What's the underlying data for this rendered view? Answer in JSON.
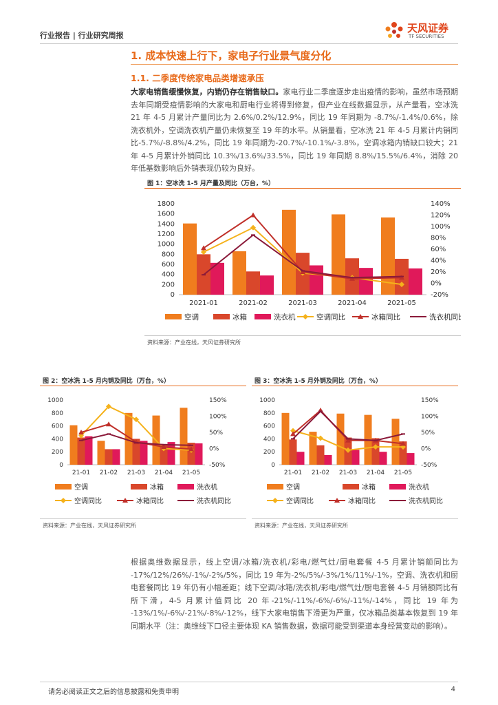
{
  "header": {
    "left": "行业报告 | 行业研究周报",
    "logo_cn": "天风证券",
    "logo_en": "TF SECURITIES"
  },
  "section": {
    "h1": "1. 成本快速上行下，家电子行业景气度分化",
    "h2": "1.1. 二季度传统家电品类增速承压"
  },
  "para1": {
    "bold": "大家电销售缓慢恢复，内销仍存在销售缺口。",
    "text": "家电行业二季度逐步走出疫情的影响，虽然市场预期去年同期受疫情影响的大家电和厨电行业将得到修复，但产业在线数据显示，从产量看，空冰洗 21 年 4-5 月累计产量同比为 2.6%/0.2%/12.9%，同比 19 年同期为 -8.7%/-1.4%/0.6%，除洗衣机外，空调洗衣机产量仍未恢复至 19 年的水平。从销量看，空冰洗 21 年 4-5 月累计内销同比-5.7%/-8.8%/4.2%，同比 19 年同期为-20.7%/-10.1%/-3.8%，空调冰箱内销缺口较大；21 年 4-5 月累计外销同比 10.3%/13.6%/33.5%，同比 19 年同期 8.8%/15.5%/6.4%，消除 20 年低基数影响后外销表现仍较为良好。"
  },
  "fig1": {
    "title": "图 1：空冰洗 1-5 月产量及同比（万台，%）",
    "source": "资料来源：产业在线，天风证券研究所"
  },
  "fig2": {
    "title": "图 2：空冰洗 1-5 月内销及同比（万台，%）",
    "source": "资料来源：产业在线，天风证券研究所"
  },
  "fig3": {
    "title": "图 3：空冰洗 1-5 月外销及同比（万台，%）",
    "source": "资料来源：产业在线，天风证券研究所"
  },
  "para2": "根据奥维数据显示，线上空调/冰箱/洗衣机/彩电/燃气灶/厨电套餐 4-5 月累计销额同比为 -17%/12%/26%/-1%/-2%/5%，同比 19 年为-2%/5%/-3%/1%/11%/-1%，空调、洗衣机和厨电套餐同比 19 年仍有小幅差距；线下空调/冰箱/洗衣机/彩电/燃气灶/厨电套餐 4-5 月销额同比有所下滑，4-5 月累计值同比 20 年-21%/-11%/-6%/-6%/-11%/-14%，同比 19 年为 -13%/1%/-6%/-21%/-8%/-12%，线下大家电销售下滑更为严重，仅冰箱品类基本恢复到 19 年同期水平（注：奥维线下口径主要体现 KA 销售数据，数据可能受到渠道本身经营变动的影响）。",
  "footer": {
    "left": "请务必阅读正文之后的信息披露和免责申明",
    "page": "4"
  },
  "chart_data": [
    {
      "id": "fig1",
      "type": "bar",
      "categories": [
        "2021-01",
        "2021-02",
        "2021-03",
        "2021-04",
        "2021-05"
      ],
      "series": [
        {
          "name": "空调",
          "kind": "bar",
          "color": "#f07d1e",
          "values": [
            1410,
            860,
            1680,
            1590,
            1530
          ]
        },
        {
          "name": "冰箱",
          "kind": "bar",
          "color": "#d9472b",
          "values": [
            800,
            460,
            830,
            720,
            710
          ]
        },
        {
          "name": "洗衣机",
          "kind": "bar",
          "color": "#e0195a",
          "values": [
            630,
            380,
            580,
            530,
            520
          ]
        },
        {
          "name": "空调同比",
          "kind": "line",
          "color": "#f5b21c",
          "marker": "diamond",
          "values": [
            55,
            98,
            18,
            10,
            -2
          ]
        },
        {
          "name": "冰箱同比",
          "kind": "line",
          "color": "#c0302a",
          "marker": "triangle",
          "values": [
            62,
            120,
            20,
            8,
            10
          ]
        },
        {
          "name": "洗衣机同比",
          "kind": "line",
          "color": "#8b1a3a",
          "marker": "dash",
          "values": [
            15,
            85,
            22,
            10,
            12
          ]
        }
      ],
      "ylim": [
        0,
        1800
      ],
      "yticks": [
        "0",
        "200",
        "400",
        "600",
        "800",
        "1000",
        "1200",
        "1400",
        "1600",
        "1800"
      ],
      "y2lim": [
        -20,
        140
      ],
      "y2ticks": [
        "-20%",
        "0%",
        "20%",
        "40%",
        "60%",
        "80%",
        "100%",
        "120%",
        "140%"
      ]
    },
    {
      "id": "fig2",
      "type": "bar",
      "categories": [
        "21-01",
        "21-02",
        "21-03",
        "21-04",
        "21-05"
      ],
      "series": [
        {
          "name": "空调",
          "kind": "bar",
          "color": "#f07d1e",
          "values": [
            610,
            370,
            800,
            760,
            880
          ]
        },
        {
          "name": "冰箱",
          "kind": "bar",
          "color": "#d9472b",
          "values": [
            420,
            240,
            400,
            320,
            340
          ]
        },
        {
          "name": "洗衣机",
          "kind": "bar",
          "color": "#e0195a",
          "values": [
            440,
            240,
            370,
            350,
            330
          ]
        },
        {
          "name": "空调同比",
          "kind": "line",
          "color": "#f5b21c",
          "marker": "diamond",
          "values": [
            40,
            130,
            90,
            0,
            -5
          ]
        },
        {
          "name": "冰箱同比",
          "kind": "line",
          "color": "#c0302a",
          "marker": "triangle",
          "values": [
            50,
            75,
            20,
            5,
            -2
          ]
        },
        {
          "name": "洗衣机同比",
          "kind": "line",
          "color": "#8b1a3a",
          "marker": "dash",
          "values": [
            25,
            45,
            18,
            12,
            10
          ]
        }
      ],
      "ylim": [
        0,
        1000
      ],
      "yticks": [
        "0",
        "200",
        "400",
        "600",
        "800",
        "1000"
      ],
      "y2lim": [
        -50,
        150
      ],
      "y2ticks": [
        "-50%",
        "0%",
        "50%",
        "100%",
        "150%"
      ]
    },
    {
      "id": "fig3",
      "type": "bar",
      "categories": [
        "21-01",
        "21-02",
        "21-03",
        "21-04",
        "21-05"
      ],
      "series": [
        {
          "name": "空调",
          "kind": "bar",
          "color": "#f07d1e",
          "values": [
            800,
            510,
            790,
            770,
            710
          ]
        },
        {
          "name": "冰箱",
          "kind": "bar",
          "color": "#d9472b",
          "values": [
            390,
            300,
            420,
            410,
            360
          ]
        },
        {
          "name": "洗衣机",
          "kind": "bar",
          "color": "#e0195a",
          "values": [
            200,
            150,
            230,
            200,
            180
          ]
        },
        {
          "name": "空调同比",
          "kind": "line",
          "color": "#f5b21c",
          "marker": "diamond",
          "values": [
            55,
            32,
            -5,
            5,
            5
          ]
        },
        {
          "name": "冰箱同比",
          "kind": "line",
          "color": "#c0302a",
          "marker": "triangle",
          "values": [
            45,
            118,
            25,
            25,
            15
          ]
        },
        {
          "name": "洗衣机同比",
          "kind": "line",
          "color": "#8b1a3a",
          "marker": "dash",
          "values": [
            30,
            115,
            30,
            25,
            45
          ]
        }
      ],
      "ylim": [
        0,
        1000
      ],
      "yticks": [
        "0",
        "200",
        "400",
        "600",
        "800",
        "1000"
      ],
      "y2lim": [
        -50,
        150
      ],
      "y2ticks": [
        "-50%",
        "0%",
        "50%",
        "100%",
        "150%"
      ]
    }
  ]
}
